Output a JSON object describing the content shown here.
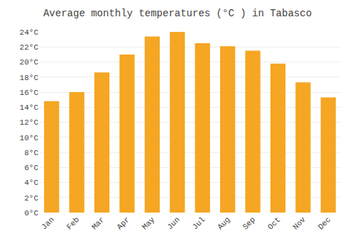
{
  "chart_data": {
    "type": "bar",
    "title": "Average monthly temperatures (°C ) in Tabasco",
    "categories": [
      "Jan",
      "Feb",
      "Mar",
      "Apr",
      "May",
      "Jun",
      "Jul",
      "Aug",
      "Sep",
      "Oct",
      "Nov",
      "Dec"
    ],
    "values": [
      14.8,
      16.0,
      18.6,
      21.0,
      23.4,
      24.0,
      22.5,
      22.1,
      21.5,
      19.8,
      17.3,
      15.3
    ],
    "color": "#F5A623",
    "ylim": [
      0,
      24
    ],
    "yticks": [
      {
        "value": 0,
        "label": "0°C"
      },
      {
        "value": 2,
        "label": "2°C"
      },
      {
        "value": 4,
        "label": "4°C"
      },
      {
        "value": 6,
        "label": "6°C"
      },
      {
        "value": 8,
        "label": "8°C"
      },
      {
        "value": 10,
        "label": "10°C"
      },
      {
        "value": 12,
        "label": "12°C"
      },
      {
        "value": 14,
        "label": "14°C"
      },
      {
        "value": 16,
        "label": "16°C"
      },
      {
        "value": 18,
        "label": "18°C"
      },
      {
        "value": 20,
        "label": "20°C"
      },
      {
        "value": 22,
        "label": "22°C"
      },
      {
        "value": 24,
        "label": "24°C"
      }
    ],
    "grid": true
  }
}
